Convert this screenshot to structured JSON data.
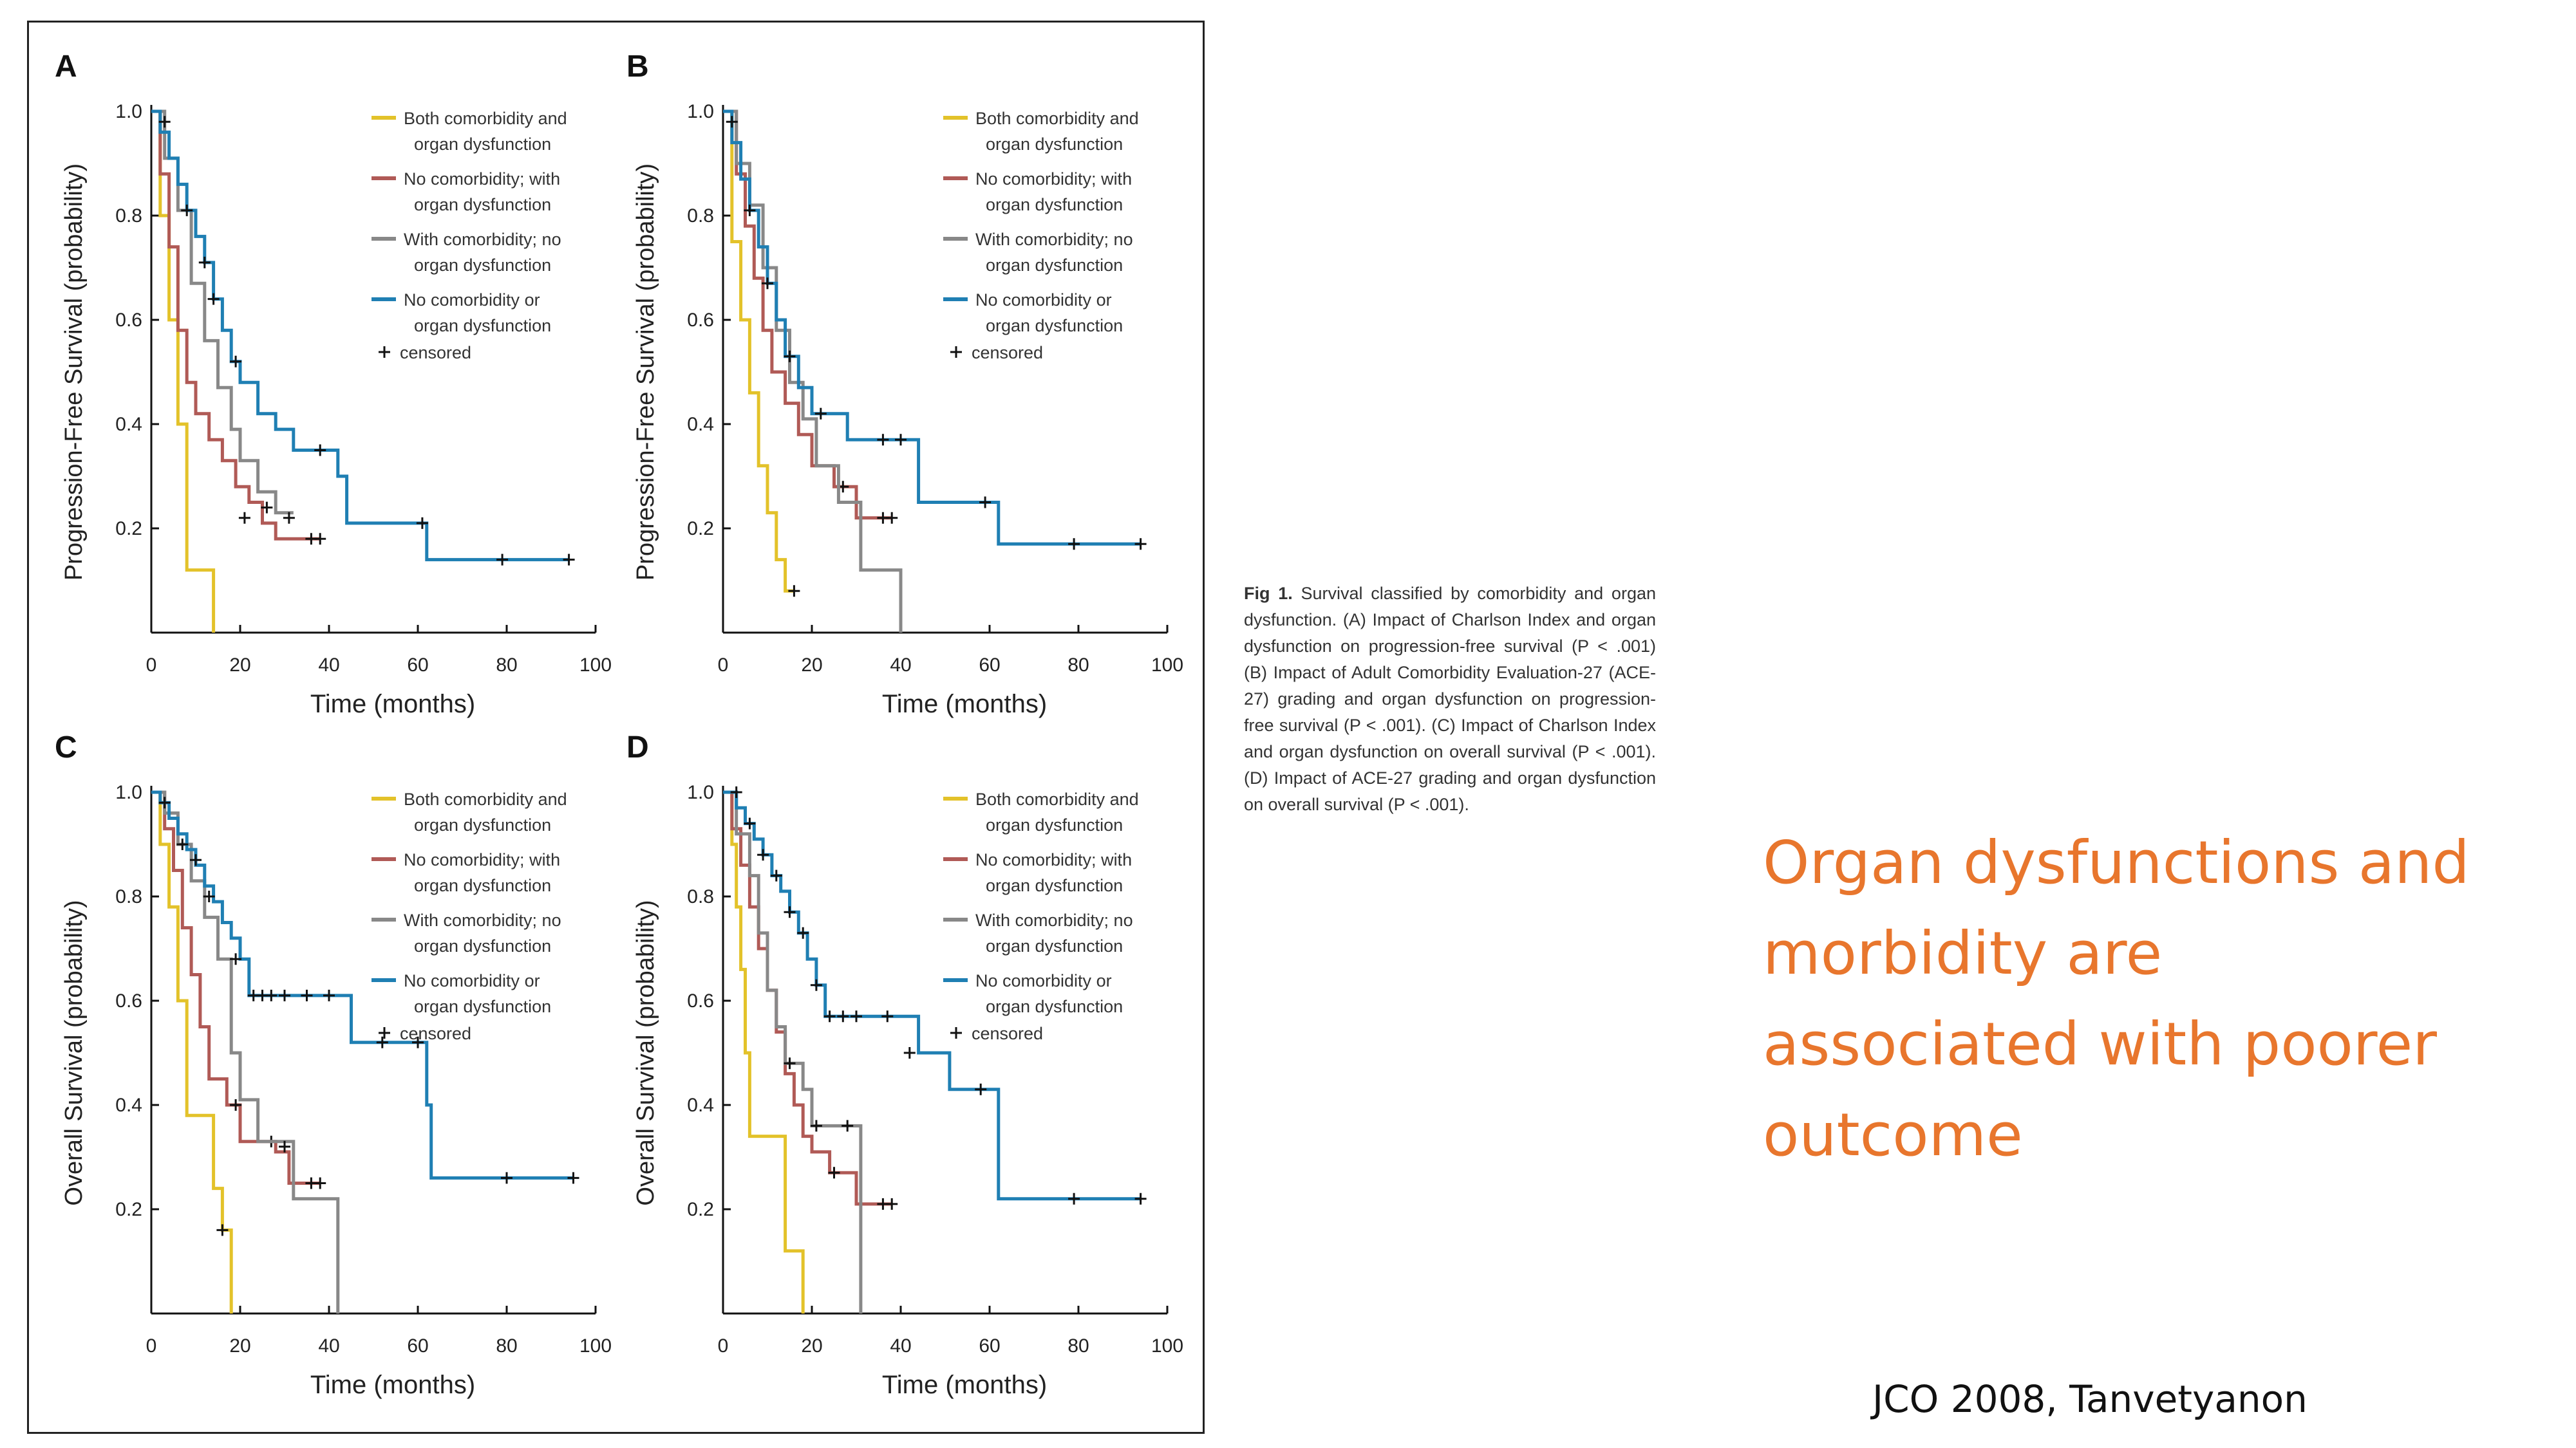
{
  "slide": {
    "headline": "Organ dysfunctions and morbidity are associated with poorer outcome",
    "citation": "JCO 2008, Tanvetyanon",
    "caption_label": "Fig 1.",
    "caption_text": "Survival classified by comorbidity and organ dysfunction. (A) Impact of Charlson Index and organ dysfunction on progression-free survival (P < .001) (B) Impact of Adult Comorbidity Evaluation-27 (ACE-27) grading and organ dysfunction on progression-free survival (P < .001). (C) Impact of Charlson Index and organ dysfunction on overall survival (P < .001). (D) Impact of ACE-27 grading and organ dysfunction on overall survival (P < .001)."
  },
  "colors": {
    "both": "#e3c22a",
    "no_comorb_with_organ": "#b05a56",
    "with_comorb_no_organ": "#888888",
    "neither": "#1f7fb3",
    "censor": "#111111",
    "headline": "#e8762d"
  },
  "legend": {
    "entries": [
      {
        "series": "both",
        "line1": "Both comorbidity and",
        "line2": "organ dysfunction"
      },
      {
        "series": "no_comorb_with_organ",
        "line1": "No comorbidity; with",
        "line2": "organ dysfunction"
      },
      {
        "series": "with_comorb_no_organ",
        "line1": "With comorbidity; no",
        "line2": "organ dysfunction"
      },
      {
        "series": "neither",
        "line1": "No comorbidity or",
        "line2": "organ dysfunction"
      }
    ],
    "censored_label": "censored"
  },
  "chart_data": [
    {
      "panel": "A",
      "type": "line",
      "xlabel": "Time (months)",
      "ylabel": "Progression-Free Survival (probability)",
      "xlim": [
        0,
        100
      ],
      "ylim": [
        0,
        1.0
      ],
      "xticks": [
        "0",
        "20",
        "40",
        "60",
        "80",
        "100"
      ],
      "yticks": [
        "0.2",
        "0.4",
        "0.6",
        "0.8",
        "1.0"
      ],
      "legend_position": "top-right",
      "series": [
        {
          "key": "both",
          "name": "Both comorbidity and organ dysfunction",
          "x": [
            0,
            2,
            4,
            6,
            8,
            14,
            14
          ],
          "y": [
            1.0,
            0.8,
            0.6,
            0.4,
            0.12,
            0.12,
            0.0
          ],
          "censored": []
        },
        {
          "key": "no_comorb_with_organ",
          "name": "No comorbidity; with organ dysfunction",
          "x": [
            0,
            2,
            4,
            6,
            8,
            10,
            13,
            16,
            19,
            22,
            25,
            28,
            31,
            38
          ],
          "y": [
            1.0,
            0.88,
            0.74,
            0.58,
            0.48,
            0.42,
            0.37,
            0.33,
            0.28,
            0.25,
            0.21,
            0.18,
            0.18,
            0.18
          ],
          "censored": [
            [
              36,
              0.18
            ],
            [
              38,
              0.18
            ]
          ]
        },
        {
          "key": "with_comorb_no_organ",
          "name": "With comorbidity; no organ dysfunction",
          "x": [
            0,
            3,
            6,
            9,
            12,
            15,
            18,
            20,
            24,
            28,
            32
          ],
          "y": [
            1.0,
            0.91,
            0.81,
            0.67,
            0.56,
            0.47,
            0.39,
            0.33,
            0.27,
            0.23,
            0.23
          ],
          "censored": [
            [
              21,
              0.22
            ],
            [
              26,
              0.24
            ],
            [
              31,
              0.22
            ]
          ]
        },
        {
          "key": "neither",
          "name": "No comorbidity or organ dysfunction",
          "x": [
            0,
            2,
            4,
            6,
            8,
            10,
            12,
            14,
            16,
            18,
            20,
            24,
            28,
            32,
            38,
            42,
            44,
            52,
            62,
            94
          ],
          "y": [
            1.0,
            0.96,
            0.91,
            0.86,
            0.81,
            0.76,
            0.71,
            0.64,
            0.58,
            0.52,
            0.48,
            0.42,
            0.39,
            0.35,
            0.35,
            0.3,
            0.21,
            0.21,
            0.14,
            0.14
          ],
          "censored": [
            [
              3,
              0.98
            ],
            [
              8,
              0.81
            ],
            [
              12,
              0.71
            ],
            [
              14,
              0.64
            ],
            [
              19,
              0.52
            ],
            [
              38,
              0.35
            ],
            [
              61,
              0.21
            ],
            [
              79,
              0.14
            ],
            [
              94,
              0.14
            ]
          ]
        }
      ]
    },
    {
      "panel": "B",
      "type": "line",
      "xlabel": "Time (months)",
      "ylabel": "Progression-Free Survival (probability)",
      "xlim": [
        0,
        100
      ],
      "ylim": [
        0,
        1.0
      ],
      "xticks": [
        "0",
        "20",
        "40",
        "60",
        "80",
        "100"
      ],
      "yticks": [
        "0.2",
        "0.4",
        "0.6",
        "0.8",
        "1.0"
      ],
      "legend_position": "top-right",
      "series": [
        {
          "key": "both",
          "name": "Both comorbidity and organ dysfunction",
          "x": [
            0,
            2,
            4,
            6,
            8,
            10,
            12,
            14,
            16
          ],
          "y": [
            1.0,
            0.75,
            0.6,
            0.46,
            0.32,
            0.23,
            0.14,
            0.08,
            0.08
          ],
          "censored": [
            [
              16,
              0.08
            ]
          ]
        },
        {
          "key": "no_comorb_with_organ",
          "name": "No comorbidity; with organ dysfunction",
          "x": [
            0,
            3,
            5,
            7,
            9,
            11,
            14,
            17,
            20,
            25,
            30,
            34,
            38
          ],
          "y": [
            1.0,
            0.88,
            0.78,
            0.68,
            0.58,
            0.5,
            0.44,
            0.38,
            0.32,
            0.28,
            0.22,
            0.22,
            0.22
          ],
          "censored": [
            [
              27,
              0.28
            ],
            [
              36,
              0.22
            ],
            [
              38,
              0.22
            ]
          ]
        },
        {
          "key": "with_comorb_no_organ",
          "name": "With comorbidity; no organ dysfunction",
          "x": [
            0,
            3,
            6,
            9,
            12,
            15,
            18,
            21,
            26,
            31,
            37,
            40
          ],
          "y": [
            1.0,
            0.9,
            0.82,
            0.7,
            0.58,
            0.48,
            0.41,
            0.32,
            0.25,
            0.12,
            0.12,
            0.0
          ],
          "censored": []
        },
        {
          "key": "neither",
          "name": "No comorbidity or organ dysfunction",
          "x": [
            0,
            2,
            4,
            6,
            8,
            10,
            12,
            14,
            17,
            20,
            24,
            28,
            34,
            40,
            44,
            52,
            62,
            94
          ],
          "y": [
            1.0,
            0.94,
            0.87,
            0.81,
            0.74,
            0.67,
            0.6,
            0.53,
            0.47,
            0.42,
            0.42,
            0.37,
            0.37,
            0.37,
            0.25,
            0.25,
            0.17,
            0.17
          ],
          "censored": [
            [
              2,
              0.98
            ],
            [
              6,
              0.81
            ],
            [
              10,
              0.67
            ],
            [
              15,
              0.53
            ],
            [
              22,
              0.42
            ],
            [
              36,
              0.37
            ],
            [
              40,
              0.37
            ],
            [
              59,
              0.25
            ],
            [
              79,
              0.17
            ],
            [
              94,
              0.17
            ]
          ]
        }
      ]
    },
    {
      "panel": "C",
      "type": "line",
      "xlabel": "Time (months)",
      "ylabel": "Overall Survival (probability)",
      "xlim": [
        0,
        100
      ],
      "ylim": [
        0,
        1.0
      ],
      "xticks": [
        "0",
        "20",
        "40",
        "60",
        "80",
        "100"
      ],
      "yticks": [
        "0.2",
        "0.4",
        "0.6",
        "0.8",
        "1.0"
      ],
      "legend_position": "top-right",
      "series": [
        {
          "key": "both",
          "name": "Both comorbidity and organ dysfunction",
          "x": [
            0,
            2,
            4,
            6,
            8,
            12,
            14,
            16,
            18
          ],
          "y": [
            1.0,
            0.9,
            0.78,
            0.6,
            0.38,
            0.38,
            0.24,
            0.16,
            0.0
          ],
          "censored": [
            [
              16,
              0.16
            ]
          ]
        },
        {
          "key": "no_comorb_with_organ",
          "name": "No comorbidity; with organ dysfunction",
          "x": [
            0,
            3,
            5,
            7,
            9,
            11,
            13,
            17,
            20,
            22,
            28,
            31,
            34,
            38
          ],
          "y": [
            1.0,
            0.93,
            0.85,
            0.74,
            0.65,
            0.55,
            0.45,
            0.4,
            0.33,
            0.33,
            0.31,
            0.25,
            0.25,
            0.25
          ],
          "censored": [
            [
              27,
              0.33
            ],
            [
              36,
              0.25
            ],
            [
              38,
              0.25
            ]
          ]
        },
        {
          "key": "with_comorb_no_organ",
          "name": "With comorbidity; no organ dysfunction",
          "x": [
            0,
            3,
            6,
            9,
            12,
            15,
            18,
            20,
            24,
            28,
            32,
            42,
            42
          ],
          "y": [
            1.0,
            0.96,
            0.9,
            0.83,
            0.76,
            0.68,
            0.5,
            0.41,
            0.33,
            0.33,
            0.22,
            0.22,
            0.0
          ],
          "censored": [
            [
              19,
              0.4
            ],
            [
              30,
              0.32
            ]
          ]
        },
        {
          "key": "neither",
          "name": "No comorbidity or organ dysfunction",
          "x": [
            0,
            2,
            4,
            6,
            8,
            10,
            12,
            14,
            16,
            18,
            20,
            22,
            40,
            45,
            58,
            62,
            63,
            95
          ],
          "y": [
            1.0,
            0.98,
            0.95,
            0.92,
            0.89,
            0.86,
            0.82,
            0.79,
            0.75,
            0.72,
            0.68,
            0.61,
            0.61,
            0.52,
            0.52,
            0.4,
            0.26,
            0.26
          ],
          "censored": [
            [
              3,
              0.98
            ],
            [
              7,
              0.9
            ],
            [
              10,
              0.87
            ],
            [
              13,
              0.8
            ],
            [
              19,
              0.68
            ],
            [
              23,
              0.61
            ],
            [
              25,
              0.61
            ],
            [
              27,
              0.61
            ],
            [
              30,
              0.61
            ],
            [
              35,
              0.61
            ],
            [
              40,
              0.61
            ],
            [
              52,
              0.52
            ],
            [
              60,
              0.52
            ],
            [
              80,
              0.26
            ],
            [
              95,
              0.26
            ]
          ]
        }
      ]
    },
    {
      "panel": "D",
      "type": "line",
      "xlabel": "Time (months)",
      "ylabel": "Overall Survival (probability)",
      "xlim": [
        0,
        100
      ],
      "ylim": [
        0,
        1.0
      ],
      "xticks": [
        "0",
        "20",
        "40",
        "60",
        "80",
        "100"
      ],
      "yticks": [
        "0.2",
        "0.4",
        "0.6",
        "0.8",
        "1.0"
      ],
      "legend_position": "top-right",
      "series": [
        {
          "key": "both",
          "name": "Both comorbidity and organ dysfunction",
          "x": [
            0,
            2,
            3,
            4,
            5,
            6,
            12,
            14,
            18,
            18
          ],
          "y": [
            1.0,
            0.9,
            0.78,
            0.66,
            0.5,
            0.34,
            0.34,
            0.12,
            0.12,
            0.0
          ],
          "censored": []
        },
        {
          "key": "no_comorb_with_organ",
          "name": "No comorbidity; with organ dysfunction",
          "x": [
            0,
            2,
            4,
            6,
            8,
            10,
            12,
            14,
            16,
            18,
            20,
            24,
            30,
            34,
            38
          ],
          "y": [
            1.0,
            0.93,
            0.86,
            0.78,
            0.7,
            0.62,
            0.54,
            0.46,
            0.4,
            0.34,
            0.31,
            0.27,
            0.21,
            0.21,
            0.21
          ],
          "censored": [
            [
              25,
              0.27
            ],
            [
              36,
              0.21
            ],
            [
              38,
              0.21
            ]
          ]
        },
        {
          "key": "with_comorb_no_organ",
          "name": "With comorbidity; no organ dysfunction",
          "x": [
            0,
            3,
            6,
            8,
            10,
            12,
            14,
            18,
            20,
            22,
            31,
            31
          ],
          "y": [
            1.0,
            0.92,
            0.84,
            0.73,
            0.62,
            0.55,
            0.48,
            0.43,
            0.36,
            0.36,
            0.36,
            0.0
          ],
          "censored": [
            [
              15,
              0.48
            ],
            [
              21,
              0.36
            ],
            [
              28,
              0.36
            ]
          ]
        },
        {
          "key": "neither",
          "name": "No comorbidity or organ dysfunction",
          "x": [
            0,
            3,
            5,
            7,
            9,
            11,
            13,
            15,
            17,
            19,
            21,
            23,
            42,
            44,
            51,
            60,
            62,
            94
          ],
          "y": [
            1.0,
            0.97,
            0.94,
            0.91,
            0.88,
            0.84,
            0.81,
            0.77,
            0.73,
            0.68,
            0.63,
            0.57,
            0.57,
            0.5,
            0.43,
            0.43,
            0.22,
            0.22
          ],
          "censored": [
            [
              3,
              1.0
            ],
            [
              6,
              0.94
            ],
            [
              9,
              0.88
            ],
            [
              12,
              0.84
            ],
            [
              15,
              0.77
            ],
            [
              18,
              0.73
            ],
            [
              21,
              0.63
            ],
            [
              24,
              0.57
            ],
            [
              27,
              0.57
            ],
            [
              30,
              0.57
            ],
            [
              37,
              0.57
            ],
            [
              42,
              0.5
            ],
            [
              58,
              0.43
            ],
            [
              79,
              0.22
            ],
            [
              94,
              0.22
            ]
          ]
        }
      ]
    }
  ]
}
